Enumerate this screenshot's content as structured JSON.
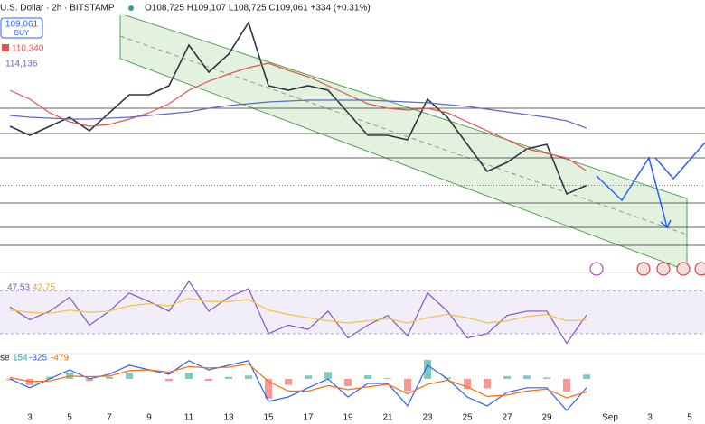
{
  "header": {
    "symbol": "U.S. Dollar · 2h · BITSTAMP",
    "ohlc": "O108,725 H109,107 L108,725 C109,061 +334 (+0.31%)",
    "badge_price": "109,061",
    "badge_action": "BUY",
    "ma_red": "110,340",
    "ma_blue": "114,136",
    "rsi_value": "47.53",
    "rsi_ma": "42.75",
    "macd_prefix": "se",
    "macd_hist": "154",
    "macd_line": "-325",
    "macd_signal": "-479"
  },
  "x_axis": {
    "labels": [
      "3",
      "5",
      "7",
      "9",
      "11",
      "13",
      "15",
      "17",
      "19",
      "21",
      "23",
      "25",
      "27",
      "29",
      "Sep",
      "3",
      "5"
    ]
  },
  "chart_data": [
    {
      "type": "line",
      "ylim": [
        101500,
        124700
      ],
      "series": [
        {
          "name": "Price",
          "color": "#2f3440",
          "values": [
            114300,
            113500,
            114300,
            115100,
            113900,
            115500,
            117100,
            117100,
            117900,
            121500,
            119100,
            120700,
            123500,
            117900,
            117500,
            117900,
            117500,
            115500,
            113500,
            113500,
            113100,
            116700,
            115100,
            112700,
            110300,
            111100,
            112300,
            112700,
            108300,
            109061
          ]
        },
        {
          "name": "MA red",
          "color": "#e0554f",
          "values": [
            117500,
            116700,
            115500,
            114700,
            114300,
            114460,
            114940,
            115500,
            116300,
            117500,
            118300,
            118940,
            119500,
            119900,
            119260,
            118700,
            117900,
            117100,
            116300,
            115900,
            115740,
            115900,
            115500,
            114700,
            113900,
            113100,
            112300,
            111900,
            111500,
            110340
          ]
        },
        {
          "name": "MA blue",
          "color": "#5b6bc9",
          "values": [
            115260,
            115100,
            115020,
            114940,
            114940,
            115020,
            115100,
            115260,
            115420,
            115580,
            115900,
            116140,
            116300,
            116460,
            116540,
            116620,
            116620,
            116620,
            116620,
            116540,
            116460,
            116380,
            116220,
            116060,
            115820,
            115580,
            115340,
            115100,
            114780,
            114136
          ]
        }
      ],
      "levels": [
        115900,
        113660,
        111500,
        107500,
        105340,
        103740
      ]
    },
    {
      "type": "line",
      "ylim": [
        13,
        83
      ],
      "band": [
        30,
        70
      ],
      "series": [
        {
          "name": "RSI",
          "color": "#7e57c2",
          "values": [
            55,
            43,
            51,
            64,
            38,
            51,
            68,
            60,
            51,
            79,
            51,
            64,
            72,
            30,
            38,
            34,
            51,
            26,
            38,
            47,
            28,
            68,
            51,
            26,
            30,
            47,
            51,
            51,
            21,
            47.53
          ]
        },
        {
          "name": "RSI MA",
          "color": "#f5c242",
          "values": [
            52,
            50,
            49,
            52,
            50,
            51,
            56,
            58,
            56,
            63,
            60,
            60,
            62,
            52,
            48,
            45,
            42,
            40,
            42,
            44,
            40,
            45,
            48,
            45,
            40,
            42,
            46,
            48,
            42,
            42.75
          ]
        }
      ]
    },
    {
      "type": "macd",
      "ylim": [
        -1270,
        830
      ],
      "histogram": [
        -50,
        -230,
        80,
        230,
        -80,
        70,
        200,
        0,
        -80,
        220,
        -70,
        70,
        120,
        -730,
        -220,
        120,
        250,
        -270,
        130,
        30,
        -450,
        700,
        50,
        -370,
        -350,
        100,
        120,
        50,
        -470,
        154
      ],
      "hist_colors": [
        "#26a69a",
        "#ef5350"
      ],
      "series": [
        {
          "name": "MACD",
          "color": "#2962ff",
          "values": [
            0,
            -330,
            0,
            330,
            0,
            170,
            500,
            330,
            170,
            670,
            330,
            500,
            670,
            -830,
            -670,
            -330,
            0,
            -670,
            -170,
            -170,
            -1000,
            500,
            0,
            -670,
            -1000,
            -500,
            -330,
            -330,
            -1170,
            -325
          ]
        },
        {
          "name": "Signal",
          "color": "#ff6d00",
          "values": [
            50,
            -100,
            -80,
            100,
            80,
            100,
            300,
            330,
            250,
            450,
            400,
            430,
            550,
            -100,
            -450,
            -450,
            -250,
            -400,
            -300,
            -200,
            -550,
            -200,
            -50,
            -300,
            -650,
            -600,
            -450,
            -380,
            -700,
            -479
          ]
        }
      ]
    }
  ]
}
